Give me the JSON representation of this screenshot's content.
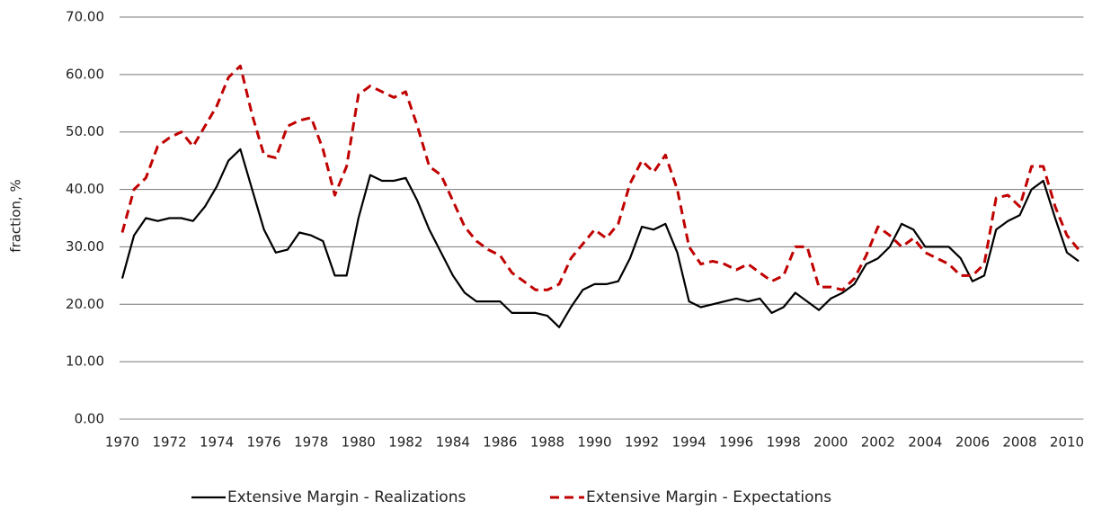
{
  "chart_data": {
    "type": "line",
    "y_label": "fraction, %",
    "x": [
      1970,
      1970.5,
      1971,
      1971.5,
      1972,
      1972.5,
      1973,
      1973.5,
      1974,
      1974.5,
      1975,
      1975.5,
      1976,
      1976.5,
      1977,
      1977.5,
      1978,
      1978.5,
      1979,
      1979.5,
      1980,
      1980.5,
      1981,
      1981.5,
      1982,
      1982.5,
      1983,
      1983.5,
      1984,
      1984.5,
      1985,
      1985.5,
      1986,
      1986.5,
      1987,
      1987.5,
      1988,
      1988.5,
      1989,
      1989.5,
      1990,
      1990.5,
      1991,
      1991.5,
      1992,
      1992.5,
      1993,
      1993.5,
      1994,
      1994.5,
      1995,
      1995.5,
      1996,
      1996.5,
      1997,
      1997.5,
      1998,
      1998.5,
      1999,
      1999.5,
      2000,
      2000.5,
      2001,
      2001.5,
      2002,
      2002.5,
      2003,
      2003.5,
      2004,
      2004.5,
      2005,
      2005.5,
      2006,
      2006.5,
      2007,
      2007.5,
      2008,
      2008.5,
      2009,
      2009.5,
      2010,
      2010.5
    ],
    "series": [
      {
        "name": "Extensive Margin - Realizations",
        "color": "#000000",
        "dash": false,
        "values": [
          24.5,
          32,
          35,
          34.5,
          35,
          35,
          34.5,
          37,
          40.5,
          45,
          47,
          40,
          33,
          29,
          29.5,
          32.5,
          32,
          31,
          25,
          25,
          35,
          42.5,
          41.5,
          41.5,
          42,
          38,
          33,
          29,
          25,
          22,
          20.5,
          20.5,
          20.5,
          18.5,
          18.5,
          18.5,
          18,
          16,
          19.5,
          22.5,
          23.5,
          23.5,
          24,
          28,
          33.5,
          33,
          34,
          29,
          20.5,
          19.5,
          20,
          20.5,
          21,
          20.5,
          21,
          18.5,
          19.5,
          22,
          20.5,
          19,
          21,
          22,
          23.5,
          27,
          28,
          30,
          34,
          33,
          30,
          30,
          30,
          28,
          24,
          25,
          33,
          34.5,
          35.5,
          40,
          41.5,
          35,
          29,
          27.5
        ]
      },
      {
        "name": "Extensive Margin - Expectations",
        "color": "#c00000",
        "dash": true,
        "values": [
          32.5,
          40,
          42,
          47.5,
          49,
          50,
          47.5,
          51,
          54.5,
          59.5,
          61.5,
          53,
          46,
          45.5,
          51,
          52,
          52.5,
          47,
          39,
          44,
          56.5,
          58,
          57,
          56,
          57,
          51,
          44,
          42.5,
          38,
          33.5,
          31,
          29.5,
          28.5,
          25.5,
          24,
          22.5,
          22.5,
          23.5,
          28,
          30.5,
          33,
          31.5,
          34,
          41,
          45,
          43,
          46,
          40,
          30,
          27,
          27.5,
          27,
          26,
          27,
          25.5,
          24,
          25,
          30,
          30,
          23,
          23,
          22.5,
          24.5,
          28.5,
          33.5,
          32,
          30,
          31.5,
          29,
          28,
          27,
          25,
          25,
          27,
          38.5,
          39,
          37,
          44,
          44,
          37,
          32,
          29.5
        ]
      }
    ],
    "xlim": [
      1970,
      2010.7
    ],
    "xticks": [
      1970,
      1972,
      1974,
      1976,
      1978,
      1980,
      1982,
      1984,
      1986,
      1988,
      1990,
      1992,
      1994,
      1996,
      1998,
      2000,
      2002,
      2004,
      2006,
      2008,
      2010
    ],
    "ylim": [
      0,
      70
    ],
    "yticks": [
      {
        "value": 0,
        "label": "0.00"
      },
      {
        "value": 10,
        "label": "10.00"
      },
      {
        "value": 20,
        "label": "20.00"
      },
      {
        "value": 30,
        "label": "30.00"
      },
      {
        "value": 40,
        "label": "40.00"
      },
      {
        "value": 50,
        "label": "50.00"
      },
      {
        "value": 60,
        "label": "60.00"
      },
      {
        "value": 70,
        "label": "70.00"
      }
    ],
    "grid": true,
    "legend": "bottom"
  }
}
